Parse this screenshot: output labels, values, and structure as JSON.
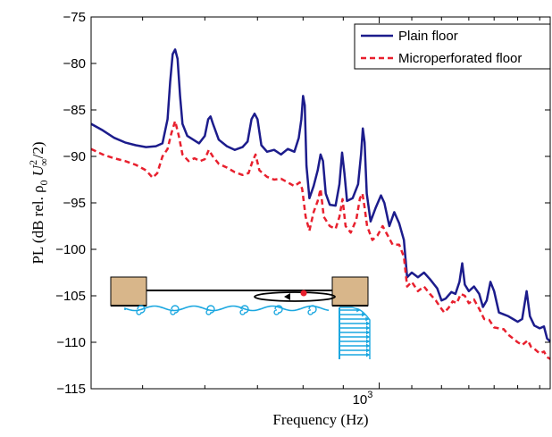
{
  "chart_data": {
    "type": "line",
    "xscale": "log",
    "xlabel": "Frequency (Hz)",
    "ylabel_text": "PL (dB rel. ρ",
    "ylabel_sub0": "0",
    "ylabel_U": "U",
    "ylabel_sup": "2",
    "ylabel_subinf": "∞",
    "ylabel_end": "/2)",
    "xlim": [
      430,
      1650
    ],
    "ylim": [
      -115,
      -75
    ],
    "yticks": [
      -115,
      -110,
      -105,
      -100,
      -95,
      -90,
      -85,
      -80,
      -75
    ],
    "ytick_labels": [
      "−115",
      "−110",
      "−105",
      "−100",
      "−95",
      "−90",
      "−85",
      "−80",
      "−75"
    ],
    "xtick_value": 1000,
    "xtick_base": "10",
    "xtick_exp": "3",
    "grid": false,
    "legend_position": "top-right",
    "series": [
      {
        "name": "Plain floor",
        "color": "#1c1c8c",
        "style": "solid",
        "points": [
          [
            430,
            -86.5
          ],
          [
            445,
            -87.2
          ],
          [
            460,
            -88.0
          ],
          [
            475,
            -88.5
          ],
          [
            490,
            -88.8
          ],
          [
            505,
            -89.0
          ],
          [
            520,
            -88.9
          ],
          [
            530,
            -88.6
          ],
          [
            538,
            -86.0
          ],
          [
            542,
            -82.0
          ],
          [
            546,
            -79.0
          ],
          [
            550,
            -78.5
          ],
          [
            554,
            -79.5
          ],
          [
            558,
            -83.5
          ],
          [
            562,
            -86.5
          ],
          [
            570,
            -87.8
          ],
          [
            580,
            -88.2
          ],
          [
            590,
            -88.6
          ],
          [
            600,
            -87.8
          ],
          [
            606,
            -86.0
          ],
          [
            610,
            -85.7
          ],
          [
            615,
            -86.6
          ],
          [
            625,
            -88.2
          ],
          [
            640,
            -88.9
          ],
          [
            655,
            -89.3
          ],
          [
            670,
            -89.0
          ],
          [
            680,
            -88.4
          ],
          [
            688,
            -86.0
          ],
          [
            694,
            -85.4
          ],
          [
            700,
            -86.0
          ],
          [
            708,
            -88.8
          ],
          [
            720,
            -89.5
          ],
          [
            735,
            -89.3
          ],
          [
            750,
            -89.8
          ],
          [
            765,
            -89.2
          ],
          [
            780,
            -89.5
          ],
          [
            790,
            -88.0
          ],
          [
            796,
            -86.0
          ],
          [
            800,
            -83.5
          ],
          [
            804,
            -84.5
          ],
          [
            808,
            -91.0
          ],
          [
            815,
            -94.5
          ],
          [
            825,
            -93.2
          ],
          [
            835,
            -91.5
          ],
          [
            842,
            -89.8
          ],
          [
            848,
            -90.5
          ],
          [
            855,
            -94.0
          ],
          [
            865,
            -95.2
          ],
          [
            880,
            -95.3
          ],
          [
            890,
            -93.0
          ],
          [
            897,
            -89.6
          ],
          [
            903,
            -91.8
          ],
          [
            910,
            -94.8
          ],
          [
            925,
            -94.5
          ],
          [
            940,
            -93.0
          ],
          [
            948,
            -89.8
          ],
          [
            953,
            -87.0
          ],
          [
            958,
            -88.5
          ],
          [
            964,
            -94.0
          ],
          [
            975,
            -97.0
          ],
          [
            990,
            -95.5
          ],
          [
            1005,
            -94.2
          ],
          [
            1015,
            -95.0
          ],
          [
            1030,
            -97.5
          ],
          [
            1045,
            -96.0
          ],
          [
            1060,
            -97.2
          ],
          [
            1075,
            -99.0
          ],
          [
            1085,
            -103.0
          ],
          [
            1100,
            -102.5
          ],
          [
            1120,
            -103.0
          ],
          [
            1140,
            -102.5
          ],
          [
            1160,
            -103.2
          ],
          [
            1175,
            -103.8
          ],
          [
            1185,
            -104.2
          ],
          [
            1200,
            -105.5
          ],
          [
            1215,
            -105.3
          ],
          [
            1235,
            -104.6
          ],
          [
            1250,
            -104.8
          ],
          [
            1265,
            -103.5
          ],
          [
            1275,
            -101.5
          ],
          [
            1285,
            -103.8
          ],
          [
            1300,
            -104.5
          ],
          [
            1320,
            -104.0
          ],
          [
            1340,
            -104.8
          ],
          [
            1355,
            -106.2
          ],
          [
            1370,
            -105.5
          ],
          [
            1385,
            -103.5
          ],
          [
            1400,
            -104.5
          ],
          [
            1420,
            -106.8
          ],
          [
            1440,
            -107.0
          ],
          [
            1460,
            -107.2
          ],
          [
            1480,
            -107.5
          ],
          [
            1500,
            -107.8
          ],
          [
            1520,
            -107.5
          ],
          [
            1540,
            -104.5
          ],
          [
            1555,
            -107.2
          ],
          [
            1575,
            -108.2
          ],
          [
            1600,
            -108.5
          ],
          [
            1620,
            -108.3
          ],
          [
            1635,
            -109.6
          ],
          [
            1650,
            -109.9
          ]
        ]
      },
      {
        "name": "Microperforated floor",
        "color": "#e8202e",
        "style": "dashed",
        "points": [
          [
            430,
            -89.2
          ],
          [
            445,
            -89.8
          ],
          [
            460,
            -90.2
          ],
          [
            475,
            -90.5
          ],
          [
            490,
            -90.9
          ],
          [
            505,
            -91.5
          ],
          [
            515,
            -92.3
          ],
          [
            522,
            -91.8
          ],
          [
            530,
            -90.0
          ],
          [
            538,
            -89.2
          ],
          [
            544,
            -87.5
          ],
          [
            550,
            -86.2
          ],
          [
            556,
            -87.8
          ],
          [
            562,
            -89.8
          ],
          [
            572,
            -90.5
          ],
          [
            582,
            -90.2
          ],
          [
            592,
            -90.5
          ],
          [
            600,
            -90.3
          ],
          [
            607,
            -89.3
          ],
          [
            614,
            -90.0
          ],
          [
            625,
            -90.8
          ],
          [
            640,
            -91.2
          ],
          [
            655,
            -91.7
          ],
          [
            670,
            -92.0
          ],
          [
            682,
            -91.8
          ],
          [
            690,
            -90.5
          ],
          [
            696,
            -89.8
          ],
          [
            704,
            -91.5
          ],
          [
            720,
            -92.2
          ],
          [
            735,
            -92.5
          ],
          [
            750,
            -92.4
          ],
          [
            765,
            -92.8
          ],
          [
            780,
            -93.2
          ],
          [
            792,
            -92.8
          ],
          [
            798,
            -93.5
          ],
          [
            806,
            -96.5
          ],
          [
            815,
            -98.0
          ],
          [
            825,
            -96.0
          ],
          [
            835,
            -94.8
          ],
          [
            842,
            -93.5
          ],
          [
            850,
            -96.5
          ],
          [
            865,
            -97.5
          ],
          [
            880,
            -97.8
          ],
          [
            890,
            -96.5
          ],
          [
            898,
            -94.6
          ],
          [
            906,
            -97.5
          ],
          [
            920,
            -98.2
          ],
          [
            935,
            -96.8
          ],
          [
            945,
            -94.5
          ],
          [
            952,
            -94.0
          ],
          [
            958,
            -95.5
          ],
          [
            965,
            -97.5
          ],
          [
            980,
            -99.0
          ],
          [
            995,
            -98.5
          ],
          [
            1010,
            -97.5
          ],
          [
            1025,
            -98.5
          ],
          [
            1040,
            -99.5
          ],
          [
            1060,
            -99.5
          ],
          [
            1075,
            -100.8
          ],
          [
            1085,
            -104.0
          ],
          [
            1100,
            -103.5
          ],
          [
            1120,
            -104.5
          ],
          [
            1140,
            -104.0
          ],
          [
            1160,
            -104.8
          ],
          [
            1180,
            -105.5
          ],
          [
            1195,
            -106.2
          ],
          [
            1210,
            -106.8
          ],
          [
            1225,
            -106.3
          ],
          [
            1240,
            -105.6
          ],
          [
            1255,
            -105.8
          ],
          [
            1270,
            -104.8
          ],
          [
            1285,
            -105.0
          ],
          [
            1300,
            -105.8
          ],
          [
            1320,
            -105.4
          ],
          [
            1340,
            -106.4
          ],
          [
            1360,
            -107.5
          ],
          [
            1380,
            -107.6
          ],
          [
            1400,
            -108.4
          ],
          [
            1420,
            -108.5
          ],
          [
            1440,
            -108.6
          ],
          [
            1460,
            -109.2
          ],
          [
            1480,
            -109.6
          ],
          [
            1500,
            -110.0
          ],
          [
            1520,
            -110.3
          ],
          [
            1545,
            -109.8
          ],
          [
            1560,
            -110.5
          ],
          [
            1580,
            -110.8
          ],
          [
            1600,
            -111.2
          ],
          [
            1620,
            -111.0
          ],
          [
            1635,
            -111.6
          ],
          [
            1650,
            -111.8
          ]
        ]
      }
    ]
  },
  "inset": {
    "block_color": "#d8b68a",
    "flow_color": "#1aa7e0",
    "marker_color": "#e8202e"
  }
}
